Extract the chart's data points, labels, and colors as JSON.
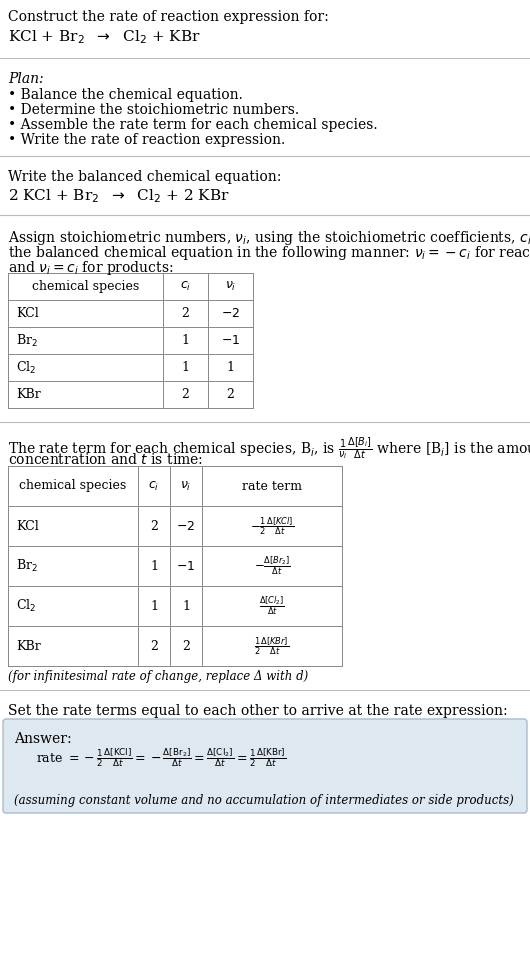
{
  "bg_color": "#ffffff",
  "text_color": "#000000",
  "title_line1": "Construct the rate of reaction expression for:",
  "reaction_unbalanced": "KCl + Br$_2$  $\\rightarrow$  Cl$_2$ + KBr",
  "plan_header": "Plan:",
  "plan_items": [
    "• Balance the chemical equation.",
    "• Determine the stoichiometric numbers.",
    "• Assemble the rate term for each chemical species.",
    "• Write the rate of reaction expression."
  ],
  "balanced_header": "Write the balanced chemical equation:",
  "reaction_balanced": "2 KCl + Br$_2$  $\\rightarrow$  Cl$_2$ + 2 KBr",
  "assign_text1": "Assign stoichiometric numbers, $\\nu_i$, using the stoichiometric coefficients, $c_i$, from",
  "assign_text2": "the balanced chemical equation in the following manner: $\\nu_i = -c_i$ for reactants",
  "assign_text3": "and $\\nu_i = c_i$ for products:",
  "table1_headers": [
    "chemical species",
    "$c_i$",
    "$\\nu_i$"
  ],
  "table1_rows": [
    [
      "KCl",
      "2",
      "$-2$"
    ],
    [
      "Br$_2$",
      "1",
      "$-1$"
    ],
    [
      "Cl$_2$",
      "1",
      "1"
    ],
    [
      "KBr",
      "2",
      "2"
    ]
  ],
  "rate_text1": "The rate term for each chemical species, B$_i$, is $\\frac{1}{\\nu_i}\\frac{\\Delta[B_i]}{\\Delta t}$ where [B$_i$] is the amount",
  "rate_text2": "concentration and $t$ is time:",
  "table2_headers": [
    "chemical species",
    "$c_i$",
    "$\\nu_i$",
    "rate term"
  ],
  "table2_rows": [
    [
      "KCl",
      "2",
      "$-2$",
      "$-\\frac{1}{2}\\frac{\\Delta[KCl]}{\\Delta t}$"
    ],
    [
      "Br$_2$",
      "1",
      "$-1$",
      "$-\\frac{\\Delta[Br_2]}{\\Delta t}$"
    ],
    [
      "Cl$_2$",
      "1",
      "1",
      "$\\frac{\\Delta[Cl_2]}{\\Delta t}$"
    ],
    [
      "KBr",
      "2",
      "2",
      "$\\frac{1}{2}\\frac{\\Delta[KBr]}{\\Delta t}$"
    ]
  ],
  "infinitesimal_note": "(for infinitesimal rate of change, replace Δ with d)",
  "set_text": "Set the rate terms equal to each other to arrive at the rate expression:",
  "answer_label": "Answer:",
  "answer_box_color": "#dde8f0",
  "rate_expression_parts": [
    "rate $= -\\frac{1}{2}\\frac{\\Delta[KCl]}{\\Delta t}$",
    "$= -\\frac{\\Delta[Br_2]}{\\Delta t}$",
    "$= \\frac{\\Delta[Cl_2]}{\\Delta t}$",
    "$= \\frac{1}{2}\\frac{\\Delta[KBr]}{\\Delta t}$"
  ],
  "assumption_note": "(assuming constant volume and no accumulation of intermediates or side products)"
}
